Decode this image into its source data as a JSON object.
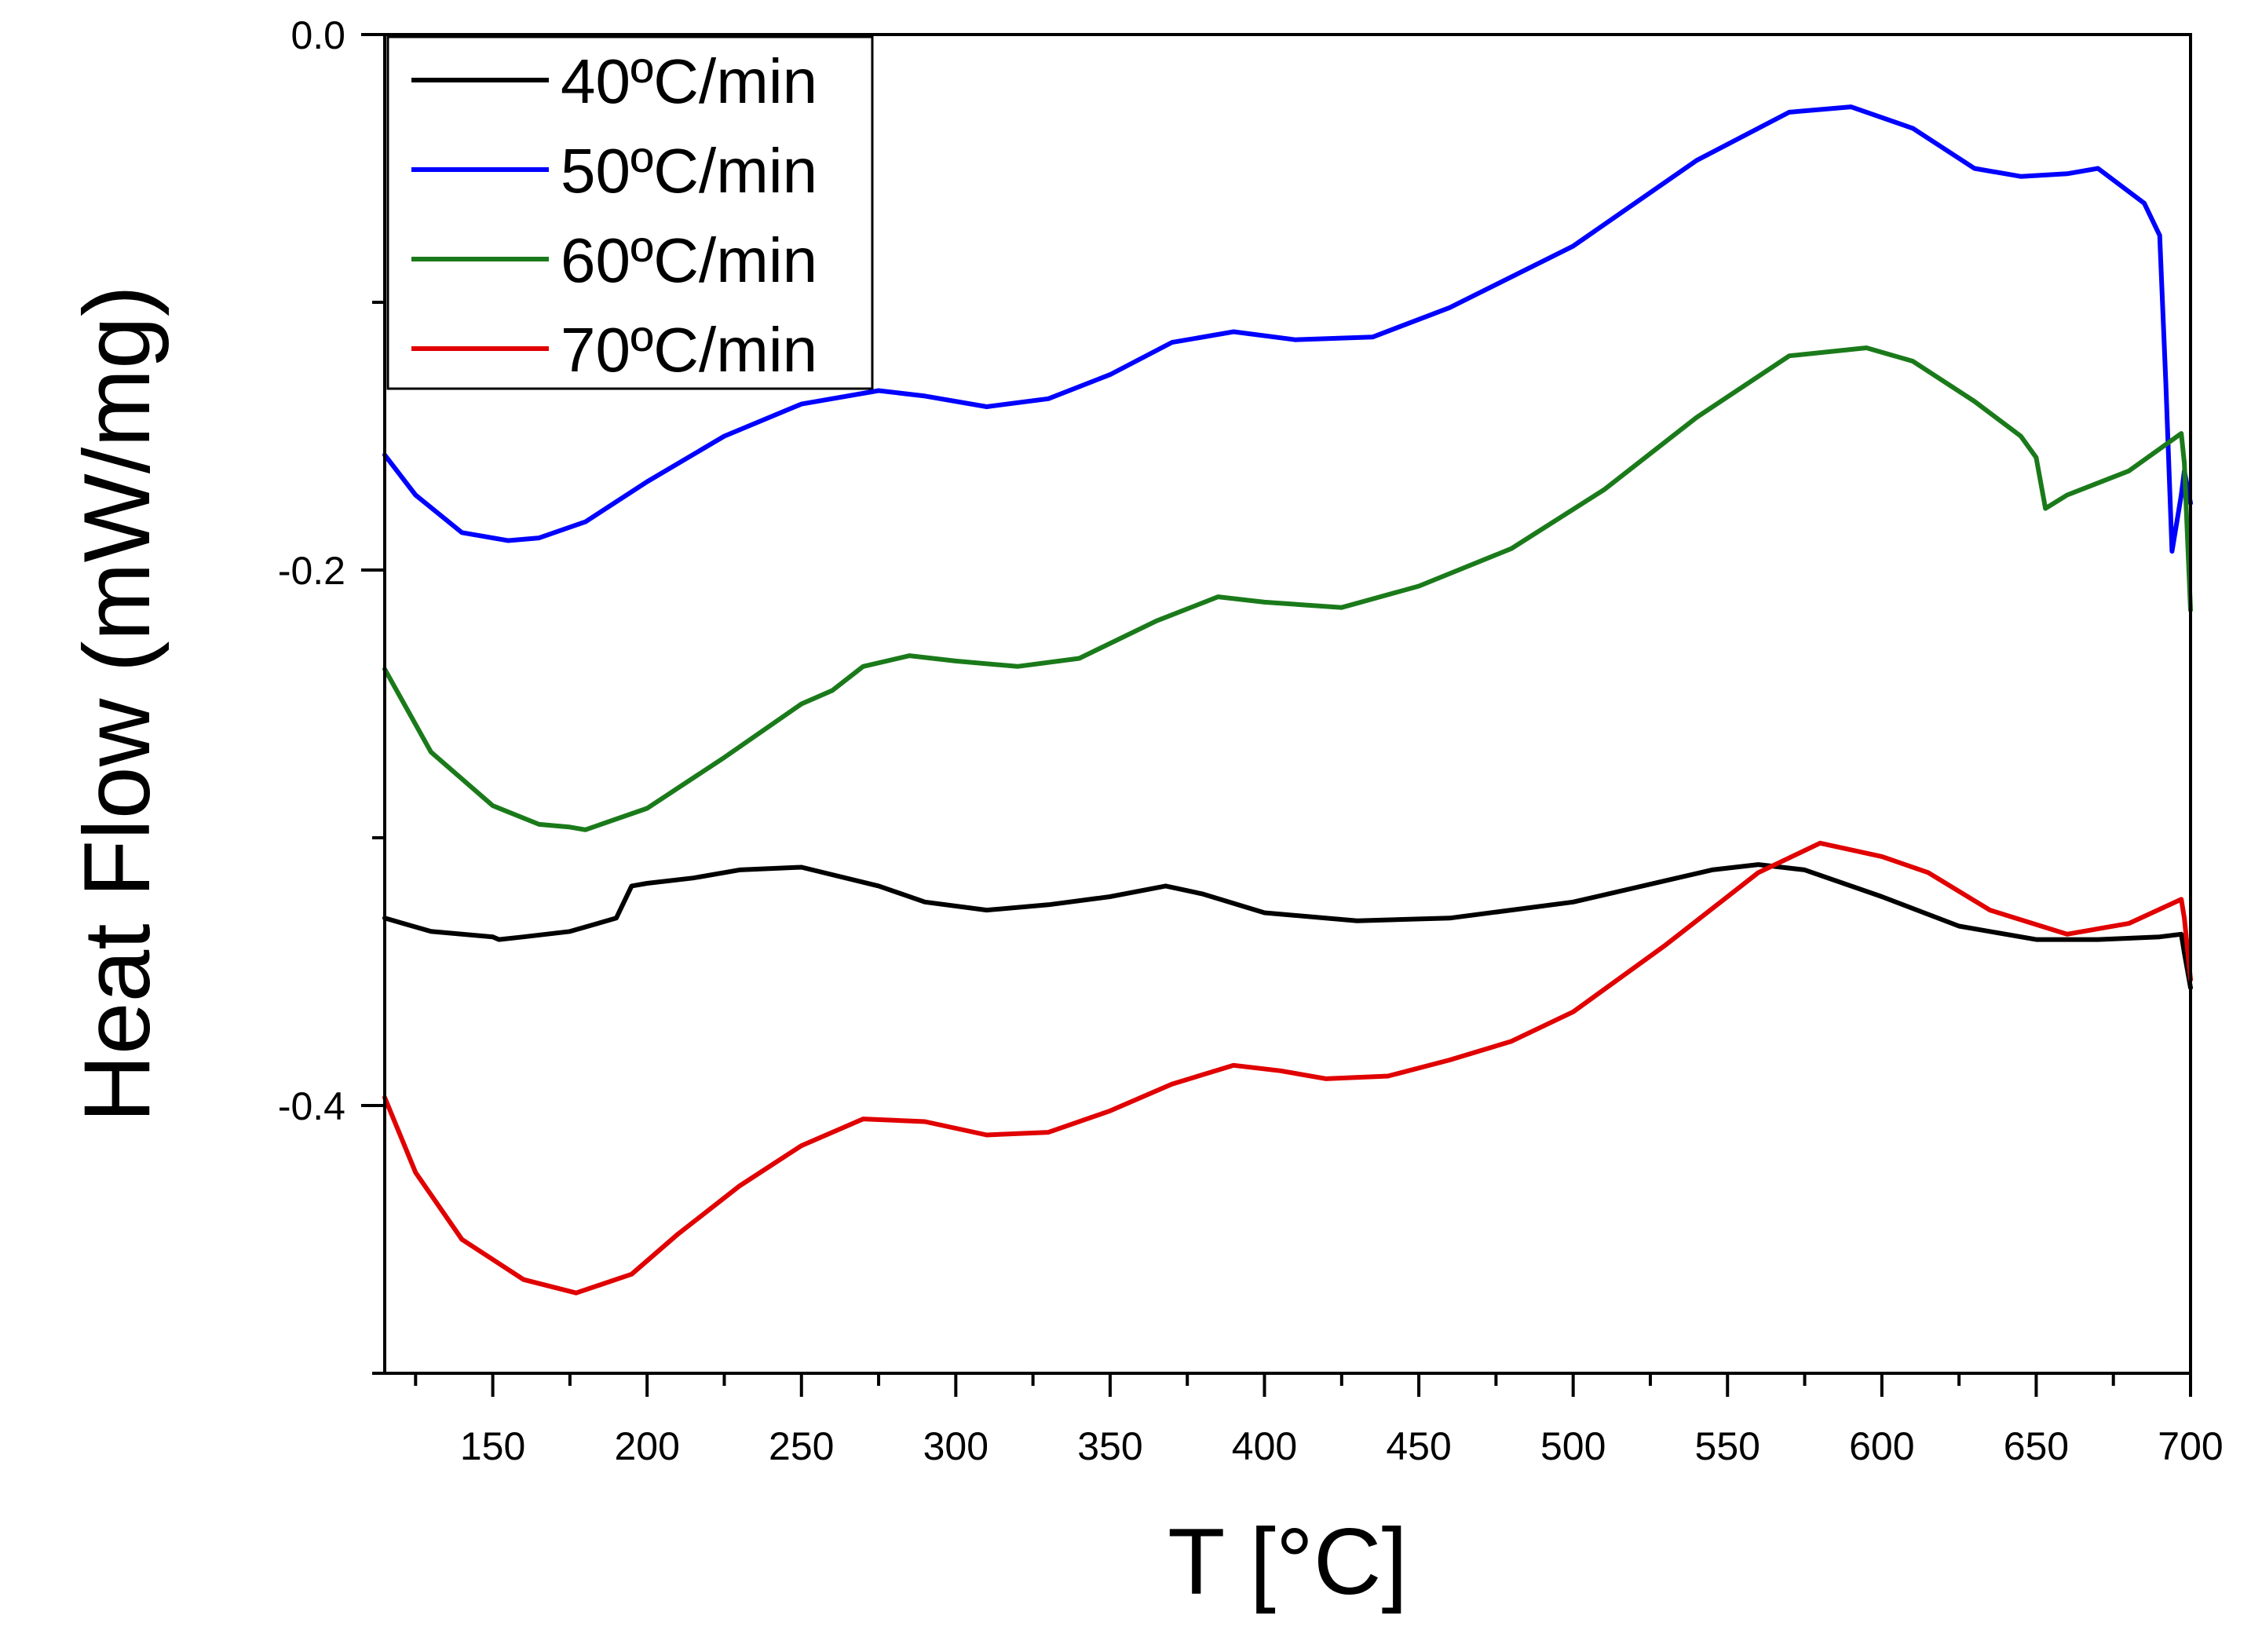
{
  "chart_data": {
    "type": "line",
    "title": "",
    "xlabel": "T [°C]",
    "ylabel": "Heat Flow (mW/mg)",
    "xlim": [
      115,
      700
    ],
    "ylim": [
      -0.5,
      0.0
    ],
    "x_ticks": [
      150,
      200,
      250,
      300,
      350,
      400,
      450,
      500,
      550,
      600,
      650,
      700
    ],
    "x_tick_labels": [
      "150",
      "200",
      "250",
      "300",
      "350",
      "400",
      "450",
      "500",
      "550",
      "600",
      "650",
      "700"
    ],
    "y_ticks": [
      0.0,
      -0.2,
      -0.4
    ],
    "y_tick_labels": [
      "0.0",
      "-0.2",
      "-0.4"
    ],
    "grid": false,
    "legend_position": "top-left",
    "series": [
      {
        "name": "40ºC/min",
        "color": "#000000",
        "x": [
          115,
          130,
          150,
          152,
          160,
          175,
          190,
          195,
          200,
          215,
          230,
          250,
          275,
          290,
          310,
          330,
          350,
          368,
          380,
          400,
          430,
          460,
          500,
          530,
          545,
          560,
          575,
          600,
          625,
          650,
          670,
          690,
          697,
          698,
          700
        ],
        "y": [
          -0.33,
          -0.335,
          -0.337,
          -0.338,
          -0.337,
          -0.335,
          -0.33,
          -0.318,
          -0.317,
          -0.315,
          -0.312,
          -0.311,
          -0.318,
          -0.324,
          -0.327,
          -0.325,
          -0.322,
          -0.318,
          -0.321,
          -0.328,
          -0.331,
          -0.33,
          -0.324,
          -0.316,
          -0.312,
          -0.31,
          -0.312,
          -0.322,
          -0.333,
          -0.338,
          -0.338,
          -0.337,
          -0.336,
          -0.343,
          -0.356
        ]
      },
      {
        "name": "50ºC/min",
        "color": "#0000ff",
        "x": [
          115,
          125,
          140,
          155,
          165,
          180,
          200,
          225,
          250,
          275,
          290,
          310,
          330,
          350,
          370,
          390,
          410,
          435,
          460,
          500,
          540,
          570,
          590,
          610,
          630,
          645,
          660,
          670,
          685,
          690,
          692,
          694,
          697,
          698,
          700
        ],
        "y": [
          -0.157,
          -0.172,
          -0.186,
          -0.189,
          -0.188,
          -0.182,
          -0.167,
          -0.15,
          -0.138,
          -0.133,
          -0.135,
          -0.139,
          -0.136,
          -0.127,
          -0.115,
          -0.111,
          -0.114,
          -0.113,
          -0.102,
          -0.079,
          -0.047,
          -0.029,
          -0.027,
          -0.035,
          -0.05,
          -0.053,
          -0.052,
          -0.05,
          -0.063,
          -0.075,
          -0.13,
          -0.193,
          -0.172,
          -0.163,
          -0.175
        ]
      },
      {
        "name": "60ºC/min",
        "color": "#1a7a1a",
        "x": [
          115,
          130,
          150,
          165,
          175,
          180,
          200,
          225,
          250,
          260,
          270,
          285,
          300,
          320,
          340,
          365,
          385,
          400,
          425,
          450,
          480,
          510,
          540,
          570,
          595,
          610,
          630,
          645,
          650,
          653,
          660,
          680,
          697,
          698,
          700
        ],
        "y": [
          -0.237,
          -0.268,
          -0.288,
          -0.295,
          -0.296,
          -0.297,
          -0.289,
          -0.27,
          -0.25,
          -0.245,
          -0.236,
          -0.232,
          -0.234,
          -0.236,
          -0.233,
          -0.219,
          -0.21,
          -0.212,
          -0.214,
          -0.206,
          -0.192,
          -0.17,
          -0.143,
          -0.12,
          -0.117,
          -0.122,
          -0.137,
          -0.15,
          -0.158,
          -0.177,
          -0.172,
          -0.163,
          -0.149,
          -0.16,
          -0.215
        ]
      },
      {
        "name": "70ºC/min",
        "color": "#e00000",
        "x": [
          115,
          125,
          140,
          160,
          177,
          195,
          210,
          230,
          250,
          270,
          290,
          310,
          330,
          350,
          370,
          390,
          405,
          420,
          440,
          460,
          480,
          500,
          530,
          560,
          580,
          600,
          615,
          635,
          660,
          680,
          697,
          698,
          700
        ],
        "y": [
          -0.397,
          -0.425,
          -0.45,
          -0.465,
          -0.47,
          -0.463,
          -0.448,
          -0.43,
          -0.415,
          -0.405,
          -0.406,
          -0.411,
          -0.41,
          -0.402,
          -0.392,
          -0.385,
          -0.387,
          -0.39,
          -0.389,
          -0.383,
          -0.376,
          -0.365,
          -0.34,
          -0.313,
          -0.302,
          -0.307,
          -0.313,
          -0.327,
          -0.336,
          -0.332,
          -0.323,
          -0.33,
          -0.353
        ]
      }
    ]
  }
}
